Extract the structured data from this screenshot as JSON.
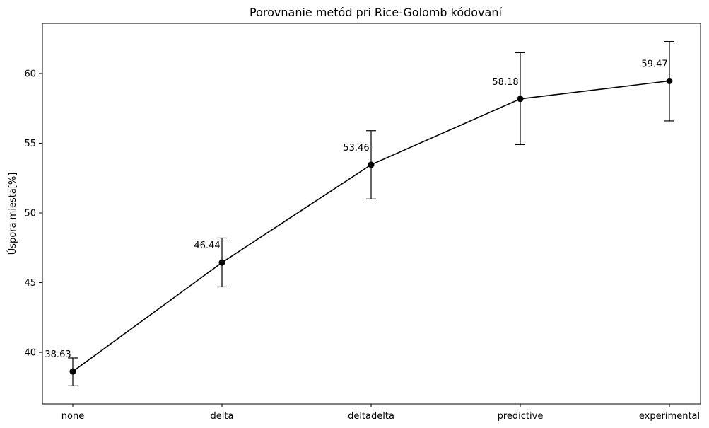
{
  "chart_data": {
    "type": "line",
    "title": "Porovnanie metód pri Rice-Golomb kódovaní",
    "xlabel": "",
    "ylabel": "Úspora miesta[%]",
    "categories": [
      "none",
      "delta",
      "deltadelta",
      "predictive",
      "experimental"
    ],
    "values": [
      38.63,
      46.44,
      53.46,
      58.18,
      59.47
    ],
    "error_low": [
      37.6,
      44.7,
      51.0,
      54.9,
      56.6
    ],
    "error_high": [
      39.6,
      48.2,
      55.9,
      61.5,
      62.3
    ],
    "data_labels": [
      "38.63",
      "46.44",
      "53.46",
      "58.18",
      "59.47"
    ],
    "y_ticks": [
      40,
      45,
      50,
      55,
      60
    ],
    "y_tick_labels": [
      "40",
      "45",
      "50",
      "55",
      "60"
    ],
    "ylim": [
      36.3,
      63.6
    ],
    "grid": false,
    "colors": {
      "line": "#000000",
      "marker": "#000000",
      "errorbar": "#000000"
    }
  }
}
